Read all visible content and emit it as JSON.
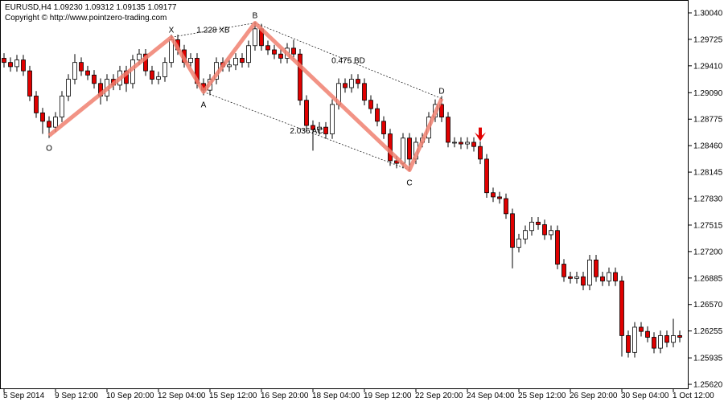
{
  "chart_data": {
    "type": "candlestick",
    "header": "EURUSD,H4  1.09230 1.09312 1.09135 1.09177",
    "copyright": "Copyright © http://www.pointzero-trading.com",
    "categories": [
      "5 Sep 2014",
      null,
      null,
      null,
      null,
      null,
      null,
      null,
      "9 Sep 12:00",
      null,
      null,
      null,
      null,
      null,
      null,
      null,
      "10 Sep 20:00",
      null,
      null,
      null,
      null,
      null,
      null,
      null,
      "12 Sep 04:00",
      null,
      null,
      null,
      null,
      null,
      null,
      null,
      "15 Sep 12:00",
      null,
      null,
      null,
      null,
      null,
      null,
      null,
      "16 Sep 20:00",
      null,
      null,
      null,
      null,
      null,
      null,
      null,
      "18 Sep 04:00",
      null,
      null,
      null,
      null,
      null,
      null,
      null,
      "19 Sep 12:00",
      null,
      null,
      null,
      null,
      null,
      null,
      null,
      "22 Sep 20:00",
      null,
      null,
      null,
      null,
      null,
      null,
      null,
      "24 Sep 04:00",
      null,
      null,
      null,
      null,
      null,
      null,
      null,
      "25 Sep 12:00",
      null,
      null,
      null,
      null,
      null,
      null,
      null,
      "26 Sep 20:00",
      null,
      null,
      null,
      null,
      null,
      null,
      null,
      "30 Sep 04:00",
      null,
      null,
      null,
      null,
      null,
      null,
      null,
      "1 Oct 12:00",
      null
    ],
    "open": [
      1.295,
      1.2945,
      1.294,
      1.2948,
      1.2935,
      1.2905,
      1.2885,
      1.2875,
      1.2868,
      1.288,
      1.2905,
      1.2925,
      1.2945,
      1.2935,
      1.293,
      1.292,
      1.2905,
      1.2925,
      1.2918,
      1.2935,
      1.292,
      1.2948,
      1.2955,
      1.2935,
      1.2925,
      1.2928,
      1.2945,
      1.2972,
      1.296,
      1.2945,
      1.295,
      1.292,
      1.2912,
      1.2925,
      1.2945,
      1.294,
      1.2942,
      1.295,
      1.2945,
      1.2965,
      1.2985,
      1.2965,
      1.296,
      1.2955,
      1.295,
      1.2962,
      1.2955,
      1.29,
      1.287,
      1.2865,
      1.2868,
      1.286,
      1.2895,
      1.292,
      1.2915,
      1.2925,
      1.292,
      1.29,
      1.289,
      1.2875,
      1.286,
      1.2828,
      1.2825,
      1.2855,
      1.283,
      1.285,
      1.2855,
      1.288,
      1.2895,
      1.288,
      1.285,
      1.285,
      1.2848,
      1.285,
      1.2845,
      1.283,
      1.279,
      1.2785,
      1.2783,
      1.2765,
      1.2725,
      1.2735,
      1.2745,
      1.2755,
      1.2752,
      1.274,
      1.2745,
      1.2705,
      1.269,
      1.2688,
      1.269,
      1.268,
      1.271,
      1.269,
      1.2685,
      1.2695,
      1.2685,
      1.262,
      1.26,
      1.263,
      1.2625,
      1.2618,
      1.2605,
      1.262,
      1.2612,
      1.262
    ],
    "high": [
      1.2956,
      1.2951,
      1.2954,
      1.2954,
      1.2941,
      1.2911,
      1.2891,
      1.2881,
      1.2886,
      1.2911,
      1.2931,
      1.2955,
      1.2951,
      1.2941,
      1.2936,
      1.2926,
      1.2931,
      1.2931,
      1.2941,
      1.2941,
      1.2954,
      1.2961,
      1.2961,
      1.2941,
      1.2934,
      1.2951,
      1.2978,
      1.2978,
      1.2966,
      1.2956,
      1.2956,
      1.2926,
      1.2931,
      1.2951,
      1.2951,
      1.2948,
      1.2956,
      1.2956,
      1.2971,
      1.2993,
      1.2991,
      1.2971,
      1.2966,
      1.2961,
      1.2968,
      1.2972,
      1.2961,
      1.2906,
      1.2876,
      1.2874,
      1.2874,
      1.2901,
      1.2926,
      1.2926,
      1.2931,
      1.2931,
      1.2926,
      1.2906,
      1.2896,
      1.2881,
      1.2866,
      1.2834,
      1.2861,
      1.2861,
      1.2856,
      1.2861,
      1.2886,
      1.2901,
      1.2905,
      1.2886,
      1.2856,
      1.2856,
      1.2856,
      1.2856,
      1.2851,
      1.2836,
      1.2796,
      1.2791,
      1.2789,
      1.2771,
      1.2741,
      1.2751,
      1.2761,
      1.2761,
      1.2758,
      1.2751,
      1.2751,
      1.2711,
      1.2696,
      1.2696,
      1.2696,
      1.2716,
      1.2716,
      1.2696,
      1.2701,
      1.2701,
      1.2691,
      1.2626,
      1.2636,
      1.2636,
      1.2631,
      1.2624,
      1.2626,
      1.2626,
      1.264,
      1.2626
    ],
    "low": [
      1.2939,
      1.2934,
      1.2934,
      1.2929,
      1.2899,
      1.2879,
      1.286,
      1.2855,
      1.2862,
      1.2874,
      1.2899,
      1.2919,
      1.2929,
      1.2924,
      1.2914,
      1.2895,
      1.2899,
      1.2912,
      1.2912,
      1.291,
      1.2914,
      1.2942,
      1.2929,
      1.2919,
      1.2919,
      1.2922,
      1.2939,
      1.2954,
      1.2939,
      1.2939,
      1.2914,
      1.2906,
      1.2906,
      1.2919,
      1.2934,
      1.2934,
      1.2936,
      1.2939,
      1.2939,
      1.2959,
      1.2959,
      1.2954,
      1.2949,
      1.2944,
      1.2944,
      1.2949,
      1.2894,
      1.2864,
      1.284,
      1.2859,
      1.2854,
      1.2854,
      1.2889,
      1.2909,
      1.2909,
      1.2914,
      1.2894,
      1.2884,
      1.2869,
      1.2854,
      1.2822,
      1.2819,
      1.2819,
      1.2816,
      1.2824,
      1.2844,
      1.2849,
      1.2874,
      1.2874,
      1.2844,
      1.2844,
      1.2842,
      1.2842,
      1.2839,
      1.2824,
      1.2784,
      1.2779,
      1.2777,
      1.2759,
      1.27,
      1.2719,
      1.2729,
      1.2739,
      1.2746,
      1.2734,
      1.2734,
      1.2699,
      1.2684,
      1.2682,
      1.2682,
      1.2674,
      1.2674,
      1.2684,
      1.2679,
      1.2679,
      1.2679,
      1.2595,
      1.2594,
      1.2594,
      1.2619,
      1.2612,
      1.2599,
      1.2599,
      1.2606,
      1.2606,
      1.2612
    ],
    "close": [
      1.2945,
      1.294,
      1.2948,
      1.2935,
      1.2905,
      1.2885,
      1.2875,
      1.2868,
      1.288,
      1.2905,
      1.2925,
      1.2945,
      1.2935,
      1.293,
      1.292,
      1.2905,
      1.2925,
      1.2918,
      1.2935,
      1.292,
      1.2948,
      1.2955,
      1.2935,
      1.2925,
      1.2928,
      1.2945,
      1.2972,
      1.296,
      1.2945,
      1.295,
      1.292,
      1.2912,
      1.2925,
      1.2945,
      1.294,
      1.2942,
      1.295,
      1.2945,
      1.2965,
      1.2985,
      1.2965,
      1.296,
      1.2955,
      1.295,
      1.2962,
      1.2955,
      1.29,
      1.287,
      1.2865,
      1.2868,
      1.286,
      1.2895,
      1.292,
      1.2915,
      1.2925,
      1.292,
      1.29,
      1.289,
      1.2875,
      1.286,
      1.2828,
      1.2825,
      1.2855,
      1.283,
      1.285,
      1.2855,
      1.288,
      1.2895,
      1.288,
      1.285,
      1.285,
      1.2848,
      1.285,
      1.2845,
      1.283,
      1.279,
      1.2785,
      1.2783,
      1.2765,
      1.2725,
      1.2735,
      1.2745,
      1.2755,
      1.2752,
      1.274,
      1.2745,
      1.2705,
      1.269,
      1.2688,
      1.269,
      1.268,
      1.271,
      1.269,
      1.2685,
      1.2695,
      1.2685,
      1.262,
      1.26,
      1.263,
      1.2625,
      1.2618,
      1.2605,
      1.262,
      1.2612,
      1.262,
      1.2618
    ],
    "up_color": "#ffffff",
    "down_color": "#e00000",
    "ylim": [
      1.25563,
      1.30193
    ],
    "yticks": [
      {
        "value": 1.3004,
        "label": "1.30040"
      },
      {
        "value": 1.29725,
        "label": "1.29725"
      },
      {
        "value": 1.2941,
        "label": "1.29410"
      },
      {
        "value": 1.2909,
        "label": "1.29090"
      },
      {
        "value": 1.28775,
        "label": "1.28775"
      },
      {
        "value": 1.2846,
        "label": "1.28460"
      },
      {
        "value": 1.28145,
        "label": "1.28145"
      },
      {
        "value": 1.2783,
        "label": "1.27830"
      },
      {
        "value": 1.27515,
        "label": "1.27515"
      },
      {
        "value": 1.272,
        "label": "1.27200"
      },
      {
        "value": 1.26885,
        "label": "1.26885"
      },
      {
        "value": 1.2657,
        "label": "1.26570"
      },
      {
        "value": 1.26255,
        "label": "1.26255"
      },
      {
        "value": 1.25935,
        "label": "1.25935"
      },
      {
        "value": 1.2562,
        "label": "1.25620"
      }
    ],
    "pattern": {
      "color": "#f08070",
      "points": [
        {
          "label": "O",
          "bar": 7,
          "price": 1.2858
        },
        {
          "label": "X",
          "bar": 26,
          "price": 1.2975
        },
        {
          "label": "A",
          "bar": 31,
          "price": 1.291
        },
        {
          "label": "B",
          "bar": 39,
          "price": 1.2992
        },
        {
          "label": "C",
          "bar": 63,
          "price": 1.2817
        },
        {
          "label": "D",
          "bar": 68,
          "price": 1.2902
        }
      ],
      "ratios": [
        {
          "label": "1.228 XB",
          "from": 1,
          "to": 3
        },
        {
          "label": "0.475 BD",
          "from": 3,
          "to": 5
        },
        {
          "label": "2.036 AC",
          "from": 2,
          "to": 4
        }
      ]
    },
    "signal": {
      "bar": 74,
      "price": 1.2858,
      "color": "#e00000"
    }
  }
}
